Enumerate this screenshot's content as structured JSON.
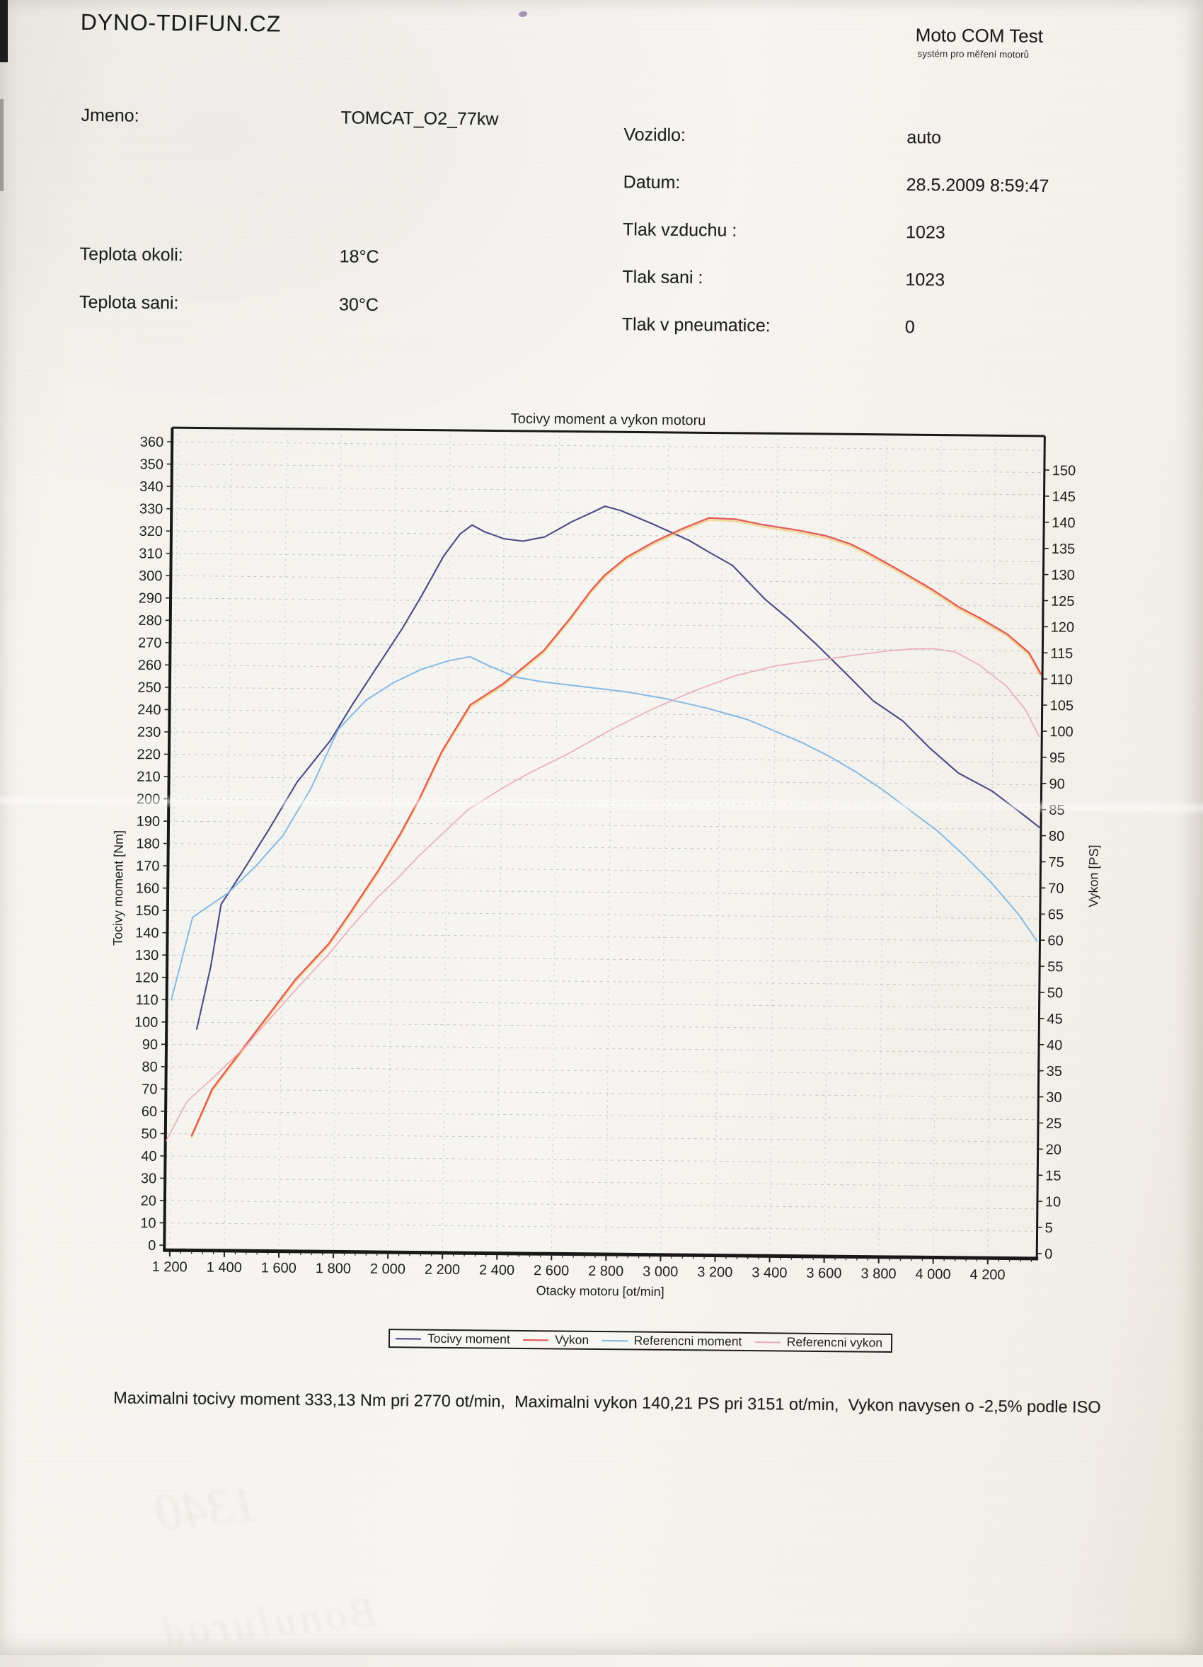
{
  "header": {
    "brand": "DYNO-TDIFUN.CZ",
    "product": "Moto COM Test",
    "product_subtitle": "systém pro měření motorů"
  },
  "info": {
    "left": [
      {
        "label": "Jmeno:",
        "value": "TOMCAT_O2_77kw"
      },
      {
        "label": "Teplota okoli:",
        "value": "18°C"
      },
      {
        "label": "Teplota sani:",
        "value": "30°C"
      }
    ],
    "right": [
      {
        "label": "Vozidlo:",
        "value": "auto"
      },
      {
        "label": "Datum:",
        "value": "28.5.2009 8:59:47"
      },
      {
        "label": "Tlak vzduchu :",
        "value": "1023"
      },
      {
        "label": "Tlak sani :",
        "value": "1023"
      },
      {
        "label": "Tlak v pneumatice:",
        "value": "0"
      }
    ]
  },
  "chart_data": {
    "type": "line",
    "title": "Tocivy moment a vykon motoru",
    "xlabel": "Otacky motoru [ot/min]",
    "ylabel_left": "Tocivy moment [Nm]",
    "ylabel_right": "Vykon [PS]",
    "xlim": [
      1180,
      4380
    ],
    "y_left_axis": {
      "min": 0,
      "max": 360,
      "step": 10
    },
    "y_right_axis": {
      "min": 0,
      "max": 150,
      "step": 5
    },
    "x_tick_values": [
      1200,
      1400,
      1600,
      1800,
      2000,
      2200,
      2400,
      2600,
      2800,
      3000,
      3200,
      3400,
      3600,
      3800,
      4000,
      4200
    ],
    "x_tick_labels": [
      "1 200",
      "1 400",
      "1 600",
      "1 800",
      "2 000",
      "2 200",
      "2 400",
      "2 600",
      "2 800",
      "3 000",
      "3 200",
      "3 400",
      "3 600",
      "3 800",
      "4 000",
      "4 200"
    ],
    "grid": true,
    "grid_color": "#b6b9c4",
    "ink_color": "#1d1d1d",
    "legend_position": "bottom",
    "series": [
      {
        "name": "Tocivy moment",
        "axis": "left",
        "unit": "Nm",
        "color": "#3b3b7e",
        "width": 2.1,
        "points": [
          [
            1291,
            97
          ],
          [
            1340,
            125
          ],
          [
            1376,
            153
          ],
          [
            1450,
            167
          ],
          [
            1550,
            187
          ],
          [
            1650,
            208
          ],
          [
            1772,
            227
          ],
          [
            1850,
            243
          ],
          [
            1950,
            262
          ],
          [
            2029,
            277
          ],
          [
            2100,
            292
          ],
          [
            2180,
            310
          ],
          [
            2240,
            320
          ],
          [
            2283,
            324
          ],
          [
            2330,
            321
          ],
          [
            2400,
            318
          ],
          [
            2470,
            317
          ],
          [
            2550,
            319
          ],
          [
            2650,
            326
          ],
          [
            2720,
            330
          ],
          [
            2770,
            333
          ],
          [
            2830,
            331
          ],
          [
            2950,
            325
          ],
          [
            3080,
            318
          ],
          [
            3151,
            313
          ],
          [
            3240,
            307
          ],
          [
            3360,
            292
          ],
          [
            3450,
            283
          ],
          [
            3550,
            272
          ],
          [
            3660,
            259
          ],
          [
            3760,
            247
          ],
          [
            3870,
            238
          ],
          [
            3970,
            226
          ],
          [
            4075,
            215
          ],
          [
            4200,
            207
          ],
          [
            4310,
            197
          ],
          [
            4374,
            191
          ]
        ]
      },
      {
        "name": "Vykon",
        "axis": "right",
        "unit": "PS",
        "color": "#e0504c",
        "width": 2.4,
        "echo_color": "#eec24e",
        "points": [
          [
            1276,
            21
          ],
          [
            1350,
            30
          ],
          [
            1450,
            37
          ],
          [
            1550,
            44
          ],
          [
            1650,
            51
          ],
          [
            1772,
            58
          ],
          [
            1850,
            64
          ],
          [
            1950,
            72
          ],
          [
            2029,
            79
          ],
          [
            2100,
            86
          ],
          [
            2180,
            95
          ],
          [
            2283,
            104
          ],
          [
            2400,
            108
          ],
          [
            2470,
            111
          ],
          [
            2550,
            114.5
          ],
          [
            2650,
            121
          ],
          [
            2720,
            126
          ],
          [
            2770,
            129
          ],
          [
            2850,
            132.5
          ],
          [
            2950,
            135.5
          ],
          [
            3050,
            138
          ],
          [
            3151,
            140.2
          ],
          [
            3250,
            140
          ],
          [
            3350,
            139
          ],
          [
            3480,
            138
          ],
          [
            3580,
            137
          ],
          [
            3670,
            135.5
          ],
          [
            3730,
            134
          ],
          [
            3870,
            130
          ],
          [
            3970,
            127
          ],
          [
            4075,
            123.5
          ],
          [
            4150,
            121.5
          ],
          [
            4250,
            118.5
          ],
          [
            4330,
            115
          ],
          [
            4374,
            111
          ]
        ]
      },
      {
        "name": "Referencni moment",
        "axis": "left",
        "unit": "Nm",
        "color": "#79b4e4",
        "width": 2,
        "points": [
          [
            1197,
            110
          ],
          [
            1272,
            147
          ],
          [
            1400,
            158
          ],
          [
            1500,
            170
          ],
          [
            1600,
            184
          ],
          [
            1700,
            205
          ],
          [
            1800,
            232
          ],
          [
            1900,
            245
          ],
          [
            2000,
            253
          ],
          [
            2100,
            259
          ],
          [
            2200,
            263
          ],
          [
            2280,
            265
          ],
          [
            2350,
            261
          ],
          [
            2450,
            256
          ],
          [
            2550,
            254
          ],
          [
            2700,
            252
          ],
          [
            2850,
            250
          ],
          [
            3000,
            247
          ],
          [
            3150,
            243
          ],
          [
            3300,
            238
          ],
          [
            3400,
            233
          ],
          [
            3500,
            228
          ],
          [
            3600,
            222
          ],
          [
            3700,
            215
          ],
          [
            3800,
            207
          ],
          [
            3900,
            198
          ],
          [
            4000,
            189
          ],
          [
            4100,
            178
          ],
          [
            4200,
            166
          ],
          [
            4300,
            152
          ],
          [
            4370,
            140
          ]
        ]
      },
      {
        "name": "Referencni vykon",
        "axis": "right",
        "unit": "PS",
        "color": "#eaa9ba",
        "width": 1.8,
        "points": [
          [
            1183,
            20
          ],
          [
            1257,
            27.5
          ],
          [
            1350,
            32
          ],
          [
            1467,
            38
          ],
          [
            1550,
            43
          ],
          [
            1650,
            49
          ],
          [
            1772,
            56
          ],
          [
            1850,
            61
          ],
          [
            1950,
            67
          ],
          [
            2029,
            71
          ],
          [
            2100,
            75
          ],
          [
            2200,
            80
          ],
          [
            2280,
            84
          ],
          [
            2400,
            88
          ],
          [
            2500,
            91
          ],
          [
            2650,
            95
          ],
          [
            2800,
            99.5
          ],
          [
            2950,
            103.5
          ],
          [
            3100,
            107
          ],
          [
            3250,
            110
          ],
          [
            3400,
            112
          ],
          [
            3500,
            112.8
          ],
          [
            3600,
            113.5
          ],
          [
            3700,
            114.3
          ],
          [
            3800,
            115
          ],
          [
            3900,
            115.5
          ],
          [
            3980,
            115.6
          ],
          [
            4060,
            115
          ],
          [
            4150,
            112.5
          ],
          [
            4250,
            108.5
          ],
          [
            4320,
            104
          ],
          [
            4370,
            99
          ]
        ]
      }
    ],
    "annotations": {
      "max_torque": {
        "value_nm": "333,13",
        "rpm": 2770
      },
      "max_power": {
        "value_ps": "140,21",
        "rpm": 3151
      },
      "iso_correction": "-2,5%"
    }
  },
  "summary": "Maximalni tocivy moment 333,13 Nm pri 2770 ot/min,  Maximalni vykon 140,21 PS pri 3151 ot/min,  Vykon navysen o -2,5% podle ISO",
  "scan_ghosts": {
    "line1": "1340",
    "line2": "Bonulurod"
  }
}
